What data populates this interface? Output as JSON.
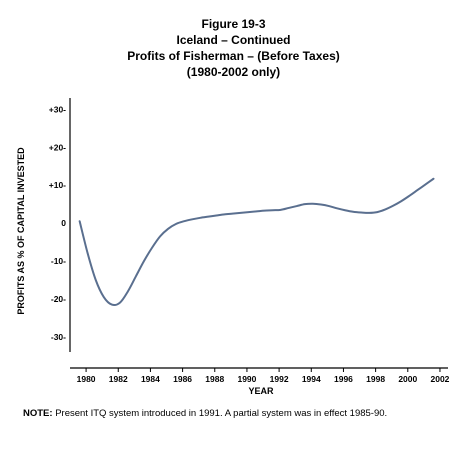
{
  "header": {
    "figure_label": "Figure 19-3",
    "country": "Iceland – Continued",
    "subject": "Profits of Fisherman – (Before Taxes)",
    "period": "(1980-2002 only)"
  },
  "note": {
    "lead": "NOTE:",
    "text": " Present ITQ system introduced in 1991.  A partial system was in effect 1985-90."
  },
  "chart_data": {
    "type": "line",
    "title": "Figure 19-3",
    "xlabel": "YEAR",
    "ylabel": "PROFITS AS % OF CAPITAL INVESTED",
    "xlim": [
      1979,
      2002.5
    ],
    "ylim": [
      -34,
      33
    ],
    "x_ticks": [
      1980,
      1982,
      1984,
      1986,
      1988,
      1990,
      1992,
      1994,
      1996,
      1998,
      2000,
      2002
    ],
    "x_tick_labels": [
      "1980",
      "1982",
      "1984",
      "1986",
      "1988",
      "1990",
      "1992",
      "1994",
      "1996",
      "1998",
      "2000",
      "2002"
    ],
    "y_ticks": [
      30,
      20,
      10,
      0,
      -10,
      -20,
      -30
    ],
    "y_tick_labels": [
      "+30-",
      "+20-",
      "+10-",
      "0",
      "-10-",
      "-20-",
      "-30-"
    ],
    "grid": false,
    "color": "#5a6f8f",
    "series": [
      {
        "x": [
          1979.6,
          1980.1,
          1980.6,
          1981.1,
          1981.6,
          1982.1,
          1982.6,
          1983.1,
          1983.6,
          1984.1,
          1984.6,
          1985.1,
          1985.6,
          1986.1,
          1986.6,
          1987.1,
          1987.6,
          1988.1,
          1988.6,
          1989.1,
          1989.6,
          1990.1,
          1990.6,
          1991.1,
          1991.6,
          1992.1,
          1992.6,
          1993.1,
          1993.6,
          1994.1,
          1994.6,
          1995.1,
          1995.6,
          1996.1,
          1996.6,
          1997.1,
          1997.6,
          1998.1,
          1998.6,
          1999.1,
          1999.6,
          2000.1,
          2000.6,
          2001.1,
          2001.6
        ],
        "y": [
          0.5,
          -8,
          -15,
          -19.5,
          -21.5,
          -21,
          -18,
          -14,
          -10,
          -6.5,
          -3.5,
          -1.5,
          -0.2,
          0.5,
          1,
          1.4,
          1.7,
          2.0,
          2.3,
          2.5,
          2.7,
          2.9,
          3.1,
          3.3,
          3.4,
          3.5,
          4.0,
          4.5,
          5.0,
          5.1,
          4.9,
          4.5,
          3.9,
          3.4,
          3.0,
          2.8,
          2.7,
          2.9,
          3.6,
          4.6,
          5.8,
          7.2,
          8.7,
          10.2,
          11.7
        ]
      }
    ]
  }
}
